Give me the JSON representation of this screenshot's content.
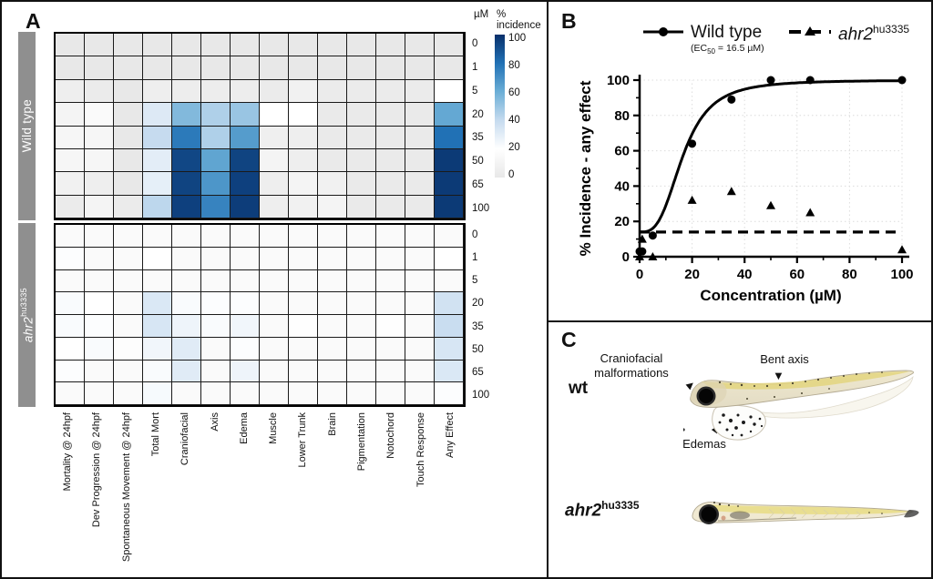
{
  "panel_a": {
    "label": "A",
    "unit_label": "µM",
    "colorbar_title": "% incidence",
    "colorbar_ticks": [
      "100",
      "80",
      "60",
      "40",
      "20",
      "0"
    ],
    "colormap_stops": [
      [
        0,
        "#e8e8e8"
      ],
      [
        20,
        "#ffffff"
      ],
      [
        40,
        "#c6dbef"
      ],
      [
        60,
        "#6baed6"
      ],
      [
        80,
        "#2171b5"
      ],
      [
        100,
        "#08306b"
      ]
    ],
    "concentrations": [
      "0",
      "1",
      "5",
      "20",
      "35",
      "50",
      "65",
      "100"
    ],
    "endpoints": [
      "Mortality @ 24hpf",
      "Dev Progression @ 24hpf",
      "Spontaneous Movement @ 24hpf",
      "Total Mort",
      "Craniofacial",
      "Axis",
      "Edema",
      "Muscle",
      "Lower Trunk",
      "Brain",
      "Pigmentation",
      "Notochord",
      "Touch Response",
      "Any Effect"
    ],
    "groups": [
      {
        "name": "Wild type",
        "italic": false,
        "sup": "",
        "matrix": [
          [
            0,
            0,
            0,
            0,
            0,
            0,
            0,
            0,
            0,
            0,
            0,
            0,
            0,
            0
          ],
          [
            0,
            0,
            0,
            0,
            0,
            0,
            0,
            0,
            0,
            0,
            0,
            0,
            0,
            0
          ],
          [
            5,
            3,
            0,
            5,
            4,
            4,
            4,
            3,
            8,
            3,
            3,
            3,
            3,
            20
          ],
          [
            10,
            16,
            0,
            32,
            55,
            45,
            50,
            20,
            20,
            2,
            2,
            2,
            2,
            62
          ],
          [
            12,
            12,
            0,
            40,
            77,
            45,
            66,
            6,
            5,
            2,
            2,
            2,
            2,
            80
          ],
          [
            12,
            12,
            0,
            30,
            93,
            63,
            94,
            10,
            5,
            2,
            2,
            2,
            2,
            97
          ],
          [
            8,
            5,
            0,
            29,
            94,
            68,
            95,
            5,
            10,
            8,
            2,
            2,
            2,
            97
          ],
          [
            3,
            10,
            3,
            42,
            95,
            74,
            96,
            5,
            8,
            10,
            2,
            2,
            2,
            97
          ]
        ]
      },
      {
        "name": "ahr2",
        "italic": true,
        "sup": "hu3335",
        "matrix": [
          [
            16,
            16,
            16,
            16,
            16,
            16,
            16,
            16,
            16,
            16,
            16,
            16,
            16,
            16
          ],
          [
            21,
            16,
            16,
            20,
            16,
            16,
            16,
            16,
            16,
            16,
            16,
            16,
            16,
            20
          ],
          [
            16,
            16,
            16,
            16,
            16,
            16,
            16,
            16,
            16,
            16,
            16,
            16,
            16,
            16
          ],
          [
            22,
            20,
            16,
            33,
            22,
            21,
            21,
            16,
            16,
            16,
            16,
            16,
            16,
            36
          ],
          [
            22,
            21,
            16,
            34,
            26,
            22,
            25,
            16,
            19,
            16,
            16,
            19,
            16,
            39
          ],
          [
            20,
            22,
            18,
            25,
            31,
            16,
            21,
            16,
            16,
            16,
            16,
            16,
            16,
            34
          ],
          [
            21,
            16,
            16,
            22,
            31,
            16,
            26,
            16,
            16,
            16,
            16,
            16,
            16,
            33
          ],
          [
            16,
            16,
            16,
            23,
            16,
            16,
            16,
            16,
            16,
            16,
            16,
            16,
            16,
            21
          ]
        ]
      }
    ]
  },
  "panel_b": {
    "label": "B",
    "legend": {
      "wt_name": "Wild type",
      "ec50_prefix": "(EC",
      "ec50_sub": "50",
      "ec50_suffix": " = 16.5 µM)",
      "mut_name": "ahr2",
      "mut_sup": "hu3335"
    },
    "chart_data": {
      "type": "scatter",
      "xlabel": "Concentration (µM)",
      "ylabel": "% Incidence - any effect",
      "xlim": [
        0,
        100
      ],
      "ylim": [
        0,
        100
      ],
      "xticks": [
        0,
        20,
        40,
        60,
        80,
        100
      ],
      "yticks": [
        0,
        20,
        40,
        60,
        80,
        100
      ],
      "minor_ticks": [
        10,
        30,
        50,
        70,
        90
      ],
      "grid": "dotted",
      "legend_position": "top",
      "series": [
        {
          "name": "Wild type",
          "marker": "circle",
          "line_style": "solid",
          "fit": {
            "type": "sigmoid",
            "bottom": 14,
            "top": 100,
            "ec50": 16.5,
            "hill": 3.1
          },
          "points": [
            [
              0,
              3
            ],
            [
              1,
              3
            ],
            [
              5,
              12
            ],
            [
              20,
              64
            ],
            [
              35,
              89
            ],
            [
              50,
              100
            ],
            [
              65,
              100
            ],
            [
              100,
              100
            ]
          ]
        },
        {
          "name": "ahr2 hu3335",
          "marker": "triangle",
          "line_style": "dashed",
          "fit": {
            "type": "flat",
            "y": 14
          },
          "points": [
            [
              0,
              0
            ],
            [
              1,
              10
            ],
            [
              5,
              0
            ],
            [
              20,
              32
            ],
            [
              35,
              37
            ],
            [
              50,
              29
            ],
            [
              65,
              25
            ],
            [
              100,
              4
            ]
          ]
        }
      ]
    }
  },
  "panel_c": {
    "label": "C",
    "specimens": [
      {
        "name": "wt",
        "italic": false,
        "sup": ""
      },
      {
        "name": "ahr2",
        "italic": true,
        "sup": "hu3335"
      }
    ],
    "annotations": {
      "craniofacial_line1": "Craniofacial",
      "craniofacial_line2": "malformations",
      "bent_axis": "Bent axis",
      "edemas": "Edemas",
      "arrow_up": "▲",
      "arrow_down": "▼"
    }
  }
}
